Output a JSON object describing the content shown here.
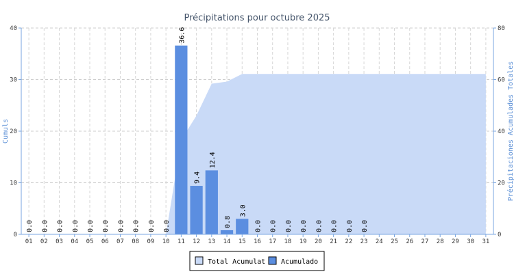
{
  "chart_data": {
    "type": "bar",
    "title": "Précipitations pour octubre 2025",
    "categories": [
      "01",
      "02",
      "03",
      "04",
      "05",
      "06",
      "07",
      "08",
      "09",
      "10",
      "11",
      "12",
      "13",
      "14",
      "15",
      "16",
      "17",
      "18",
      "19",
      "20",
      "21",
      "22",
      "23",
      "24",
      "25",
      "26",
      "27",
      "28",
      "29",
      "30",
      "31"
    ],
    "series": [
      {
        "name": "Acumulado",
        "axis": "left",
        "type": "bar",
        "color": "#5b8ee0",
        "values": [
          0.0,
          0.0,
          0.0,
          0.0,
          0.0,
          0.0,
          0.0,
          0.0,
          0.0,
          0.0,
          36.6,
          9.4,
          12.4,
          0.8,
          3.0,
          0.0,
          0.0,
          0.0,
          0.0,
          0.0,
          0.0,
          0.0,
          0.0,
          null,
          null,
          null,
          null,
          null,
          null,
          null,
          null
        ],
        "labels": [
          "0.0",
          "0.0",
          "0.0",
          "0.0",
          "0.0",
          "0.0",
          "0.0",
          "0.0",
          "0.0",
          "0.0",
          "36.6",
          "9.4",
          "12.4",
          "0.8",
          "3.0",
          "0.0",
          "0.0",
          "0.0",
          "0.0",
          "0.0",
          "0.0",
          "0.0",
          "0.0",
          "",
          "",
          "",
          "",
          "",
          "",
          "",
          ""
        ]
      },
      {
        "name": "Total Acumulat",
        "axis": "right",
        "type": "area",
        "color": "#c9daf7",
        "values": [
          0,
          0,
          0,
          0,
          0,
          0,
          0,
          0,
          0,
          0,
          36.6,
          46,
          58.4,
          59.2,
          62.2,
          62.2,
          62.2,
          62.2,
          62.2,
          62.2,
          62.2,
          62.2,
          62.2,
          62.2,
          62.2,
          62.2,
          62.2,
          62.2,
          62.2,
          62.2,
          62.2
        ]
      }
    ],
    "ylabel_left": "Cumuls",
    "ylabel_right": "Précipitaciones Acumulades Totales",
    "ylim_left": [
      0,
      40
    ],
    "ylim_right": [
      0,
      80
    ],
    "yticks_left": [
      "0",
      "10",
      "20",
      "30",
      "40"
    ],
    "yticks_right": [
      "0",
      "20",
      "40",
      "60",
      "80"
    ],
    "grid": true,
    "legend_position": "bottom-center"
  }
}
